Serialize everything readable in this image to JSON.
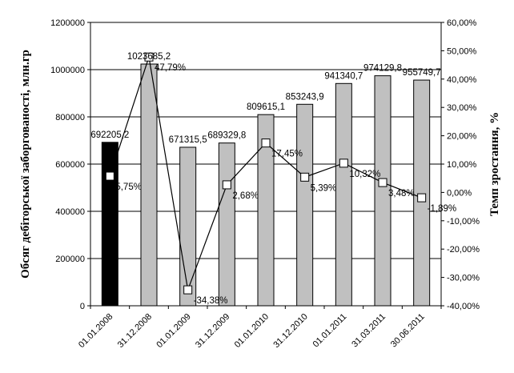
{
  "chart_data": {
    "type": "bar+line",
    "categories": [
      "01.01.2008",
      "31.12.2008",
      "01.01.2009",
      "31.12.2009",
      "01.01.2010",
      "31.12.2010",
      "01.01.2011",
      "31.03.2011",
      "30.06.2011"
    ],
    "bar_series": {
      "values": [
        692205.2,
        1023685.2,
        671315.5,
        689329.8,
        809615.1,
        853243.9,
        941340.7,
        974129.8,
        955749.7
      ],
      "labels": [
        "692205,2",
        "1023685,2",
        "671315,5",
        "689329,8",
        "809615,1",
        "853243,9",
        "941340,7",
        "974129,8",
        "955749,7"
      ],
      "colors": [
        "#000000",
        "#c0c0c0",
        "#c0c0c0",
        "#c0c0c0",
        "#c0c0c0",
        "#c0c0c0",
        "#c0c0c0",
        "#c0c0c0",
        "#c0c0c0"
      ]
    },
    "line_series": {
      "values": [
        5.75,
        47.79,
        -34.38,
        2.68,
        17.45,
        5.39,
        10.32,
        3.48,
        -1.89
      ],
      "labels": [
        "5,75%",
        "47,79%",
        "-34,38%",
        "2,68%",
        "17,45%",
        "5,39%",
        "10,32%",
        "3,48%",
        "-1,89%"
      ]
    },
    "ylabel_left": "Обсяг дебіторської заборгованості, млн.гр",
    "ylabel_right": "Темп зростання, %",
    "ylim_left": [
      0,
      1200000
    ],
    "ylim_right": [
      -40,
      60
    ],
    "left_ticks": [
      "0",
      "200000",
      "400000",
      "600000",
      "800000",
      "1000000",
      "1200000"
    ],
    "right_ticks": [
      "-40,00%",
      "-30,00%",
      "-20,00%",
      "-10,00%",
      "0,00%",
      "10,00%",
      "20,00%",
      "30,00%",
      "40,00%",
      "50,00%",
      "60,00%"
    ],
    "grid": "horizontal",
    "legend": "none"
  }
}
